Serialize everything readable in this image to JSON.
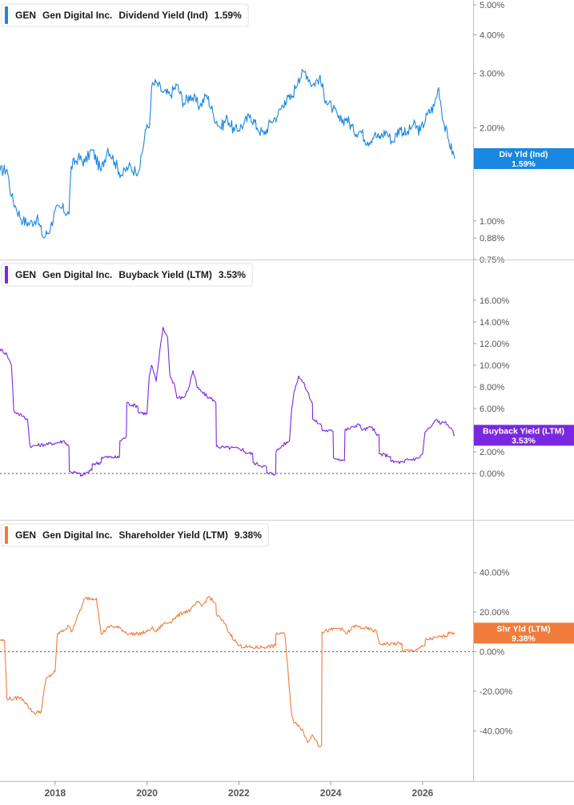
{
  "chart_data": [
    {
      "type": "line",
      "ticker": "GEN",
      "company": "Gen Digital Inc.",
      "series_name": "Dividend Yield (Ind)",
      "current_value": "1.59%",
      "tag_lines": [
        "Div Yld (Ind)",
        "1.59%"
      ],
      "color": "#1a87e0",
      "y_scale": "log",
      "ylim": [
        0.75,
        5.0
      ],
      "y_ticks": [
        {
          "v": 5.0,
          "label": "5.00%"
        },
        {
          "v": 4.0,
          "label": "4.00%"
        },
        {
          "v": 3.0,
          "label": "3.00%"
        },
        {
          "v": 2.0,
          "label": "2.00%"
        },
        {
          "v": 1.0,
          "label": "1.00%"
        },
        {
          "v": 0.88,
          "label": "0.88%"
        },
        {
          "v": 0.75,
          "label": "0.75%"
        }
      ],
      "zero_line": false,
      "x": [
        2016.8,
        2016.95,
        2017.05,
        2017.15,
        2017.3,
        2017.45,
        2017.6,
        2017.75,
        2017.9,
        2018.0,
        2018.15,
        2018.3,
        2018.35,
        2018.5,
        2018.65,
        2018.8,
        2019.0,
        2019.15,
        2019.3,
        2019.45,
        2019.6,
        2019.75,
        2019.85,
        2020.0,
        2020.05,
        2020.1,
        2020.2,
        2020.35,
        2020.5,
        2020.65,
        2020.8,
        2020.95,
        2021.15,
        2021.3,
        2021.45,
        2021.6,
        2021.75,
        2021.9,
        2022.1,
        2022.25,
        2022.4,
        2022.55,
        2022.7,
        2022.85,
        2023.0,
        2023.15,
        2023.3,
        2023.45,
        2023.6,
        2023.75,
        2023.9,
        2024.05,
        2024.2,
        2024.35,
        2024.5,
        2024.65,
        2024.8,
        2024.95,
        2025.05,
        2025.2,
        2025.35,
        2025.5,
        2025.65,
        2025.8,
        2025.95,
        2026.1,
        2026.25,
        2026.35,
        2026.45,
        2026.55,
        2026.7
      ],
      "values": [
        1.45,
        1.47,
        1.2,
        1.1,
        1.0,
        0.98,
        1.02,
        0.88,
        0.95,
        1.08,
        1.1,
        1.05,
        1.5,
        1.6,
        1.55,
        1.7,
        1.45,
        1.72,
        1.55,
        1.4,
        1.5,
        1.45,
        1.5,
        2.05,
        2.0,
        2.7,
        2.8,
        2.6,
        2.55,
        2.75,
        2.4,
        2.55,
        2.35,
        2.55,
        2.2,
        2.0,
        2.15,
        1.95,
        2.05,
        2.2,
        2.0,
        1.9,
        2.1,
        2.2,
        2.45,
        2.5,
        2.9,
        3.05,
        2.75,
        2.9,
        2.45,
        2.3,
        2.1,
        2.15,
        1.95,
        1.95,
        1.8,
        1.9,
        1.85,
        1.95,
        1.8,
        2.0,
        1.9,
        2.05,
        1.95,
        2.2,
        2.35,
        2.7,
        2.1,
        1.85,
        1.59
      ]
    },
    {
      "type": "line",
      "ticker": "GEN",
      "company": "Gen Digital Inc.",
      "series_name": "Buyback Yield (LTM)",
      "current_value": "3.53%",
      "tag_lines": [
        "Buyback Yield (LTM)",
        "3.53%"
      ],
      "color": "#7a28e0",
      "y_scale": "linear",
      "ylim": [
        -2.5,
        16.5
      ],
      "y_ticks": [
        {
          "v": 16,
          "label": "16.00%"
        },
        {
          "v": 14,
          "label": "14.00%"
        },
        {
          "v": 12,
          "label": "12.00%"
        },
        {
          "v": 10,
          "label": "10.00%"
        },
        {
          "v": 8,
          "label": "8.00%"
        },
        {
          "v": 6,
          "label": "6.00%"
        },
        {
          "v": 4,
          "label": "4.00%"
        },
        {
          "v": 2,
          "label": "2.00%"
        },
        {
          "v": 0,
          "label": "0.00%"
        }
      ],
      "zero_line": true,
      "x": [
        2016.8,
        2016.95,
        2017.0,
        2017.05,
        2017.1,
        2017.2,
        2017.3,
        2017.4,
        2017.45,
        2017.5,
        2017.6,
        2017.8,
        2018.0,
        2018.2,
        2018.3,
        2018.31,
        2018.5,
        2018.6,
        2018.61,
        2018.8,
        2018.81,
        2019.0,
        2019.01,
        2019.25,
        2019.4,
        2019.41,
        2019.55,
        2019.56,
        2019.8,
        2019.81,
        2020.0,
        2020.05,
        2020.1,
        2020.2,
        2020.3,
        2020.35,
        2020.45,
        2020.5,
        2020.6,
        2020.65,
        2020.8,
        2020.9,
        2021.0,
        2021.1,
        2021.2,
        2021.35,
        2021.45,
        2021.5,
        2021.51,
        2021.7,
        2022.0,
        2022.1,
        2022.11,
        2022.3,
        2022.31,
        2022.6,
        2022.61,
        2022.8,
        2022.81,
        2022.95,
        2023.1,
        2023.15,
        2023.2,
        2023.3,
        2023.4,
        2023.5,
        2023.6,
        2023.61,
        2023.75,
        2023.8,
        2023.81,
        2024.05,
        2024.06,
        2024.3,
        2024.31,
        2024.5,
        2024.6,
        2024.7,
        2024.9,
        2025.0,
        2025.05,
        2025.06,
        2025.3,
        2025.31,
        2025.6,
        2025.61,
        2025.9,
        2026.0,
        2026.05,
        2026.15,
        2026.2,
        2026.3,
        2026.4,
        2026.5,
        2026.55,
        2026.6,
        2026.7
      ],
      "values": [
        11.5,
        11.0,
        10.5,
        10.0,
        5.8,
        5.5,
        5.3,
        5.0,
        2.6,
        2.5,
        2.6,
        2.7,
        2.8,
        3.0,
        2.5,
        0.2,
        0.0,
        -0.2,
        -0.1,
        0.3,
        0.9,
        1.0,
        1.5,
        1.5,
        1.5,
        3.0,
        3.4,
        6.5,
        6.2,
        5.7,
        5.5,
        9.0,
        10.0,
        8.5,
        12.0,
        13.5,
        12.5,
        9.0,
        8.2,
        7.0,
        7.0,
        7.8,
        9.5,
        7.9,
        7.5,
        7.0,
        6.8,
        6.5,
        2.5,
        2.4,
        2.3,
        2.2,
        2.0,
        1.8,
        1.0,
        0.6,
        0.0,
        0.0,
        2.0,
        2.6,
        3.0,
        6.0,
        7.5,
        9.0,
        8.4,
        7.5,
        6.5,
        5.0,
        4.6,
        4.4,
        4.0,
        3.9,
        1.5,
        1.2,
        4.0,
        4.3,
        4.6,
        4.0,
        4.3,
        3.5,
        3.6,
        1.8,
        1.6,
        1.1,
        1.0,
        1.2,
        1.4,
        1.8,
        3.8,
        4.2,
        4.4,
        5.0,
        4.6,
        4.8,
        4.5,
        4.2,
        3.53
      ]
    },
    {
      "type": "line",
      "ticker": "GEN",
      "company": "Gen Digital Inc.",
      "series_name": "Shareholder Yield (LTM)",
      "current_value": "9.38%",
      "tag_lines": [
        "Shr Yld (LTM)",
        "9.38%"
      ],
      "color": "#f07c3c",
      "y_scale": "linear",
      "ylim": [
        -58,
        50
      ],
      "y_ticks": [
        {
          "v": 40,
          "label": "40.00%"
        },
        {
          "v": 20,
          "label": "20.00%"
        },
        {
          "v": 0,
          "label": "0.00%"
        },
        {
          "v": -20,
          "label": "-20.00%"
        },
        {
          "v": -40,
          "label": "-40.00%"
        }
      ],
      "zero_line": true,
      "x": [
        2016.8,
        2016.9,
        2016.95,
        2017.1,
        2017.2,
        2017.3,
        2017.4,
        2017.45,
        2017.55,
        2017.7,
        2017.75,
        2017.8,
        2018.0,
        2018.05,
        2018.2,
        2018.3,
        2018.35,
        2018.6,
        2018.65,
        2018.9,
        2019.0,
        2019.2,
        2019.4,
        2019.6,
        2019.8,
        2020.0,
        2020.1,
        2020.2,
        2020.35,
        2020.5,
        2020.6,
        2020.8,
        2020.95,
        2021.1,
        2021.2,
        2021.35,
        2021.45,
        2021.5,
        2021.51,
        2021.7,
        2021.75,
        2022.0,
        2022.3,
        2022.6,
        2022.61,
        2022.8,
        2022.81,
        2022.95,
        2023.0,
        2023.15,
        2023.2,
        2023.3,
        2023.4,
        2023.5,
        2023.6,
        2023.7,
        2023.75,
        2023.8,
        2023.81,
        2024.0,
        2024.2,
        2024.35,
        2024.5,
        2024.7,
        2024.9,
        2025.0,
        2025.05,
        2025.06,
        2025.3,
        2025.55,
        2025.56,
        2025.8,
        2025.95,
        2026.05,
        2026.06,
        2026.3,
        2026.5,
        2026.6,
        2026.7
      ],
      "values": [
        6,
        5.5,
        -23.5,
        -24,
        -23,
        -24,
        -27,
        -29,
        -31,
        -30,
        -21,
        -14,
        -10,
        9,
        11,
        13,
        10,
        24,
        27,
        27,
        9,
        13,
        12,
        9,
        9,
        10,
        12,
        10,
        14,
        15,
        17,
        20,
        21,
        25,
        23,
        28,
        25,
        24,
        19,
        14,
        11,
        3,
        2,
        2.5,
        2.5,
        3,
        9,
        9.5,
        9,
        -32,
        -36,
        -37,
        -40,
        -46,
        -42,
        -45,
        -48,
        -47,
        10,
        11,
        12,
        9,
        13,
        12,
        11,
        10,
        5,
        4,
        4,
        4,
        0.5,
        0.5,
        2,
        3,
        6,
        7,
        8,
        10,
        9.38
      ]
    }
  ],
  "x_axis": {
    "xlim": [
      2016.8,
      2027.1
    ],
    "ticks": [
      {
        "v": 2018,
        "label": "2018"
      },
      {
        "v": 2020,
        "label": "2020"
      },
      {
        "v": 2022,
        "label": "2022"
      },
      {
        "v": 2024,
        "label": "2024"
      },
      {
        "v": 2026,
        "label": "2026"
      }
    ]
  }
}
